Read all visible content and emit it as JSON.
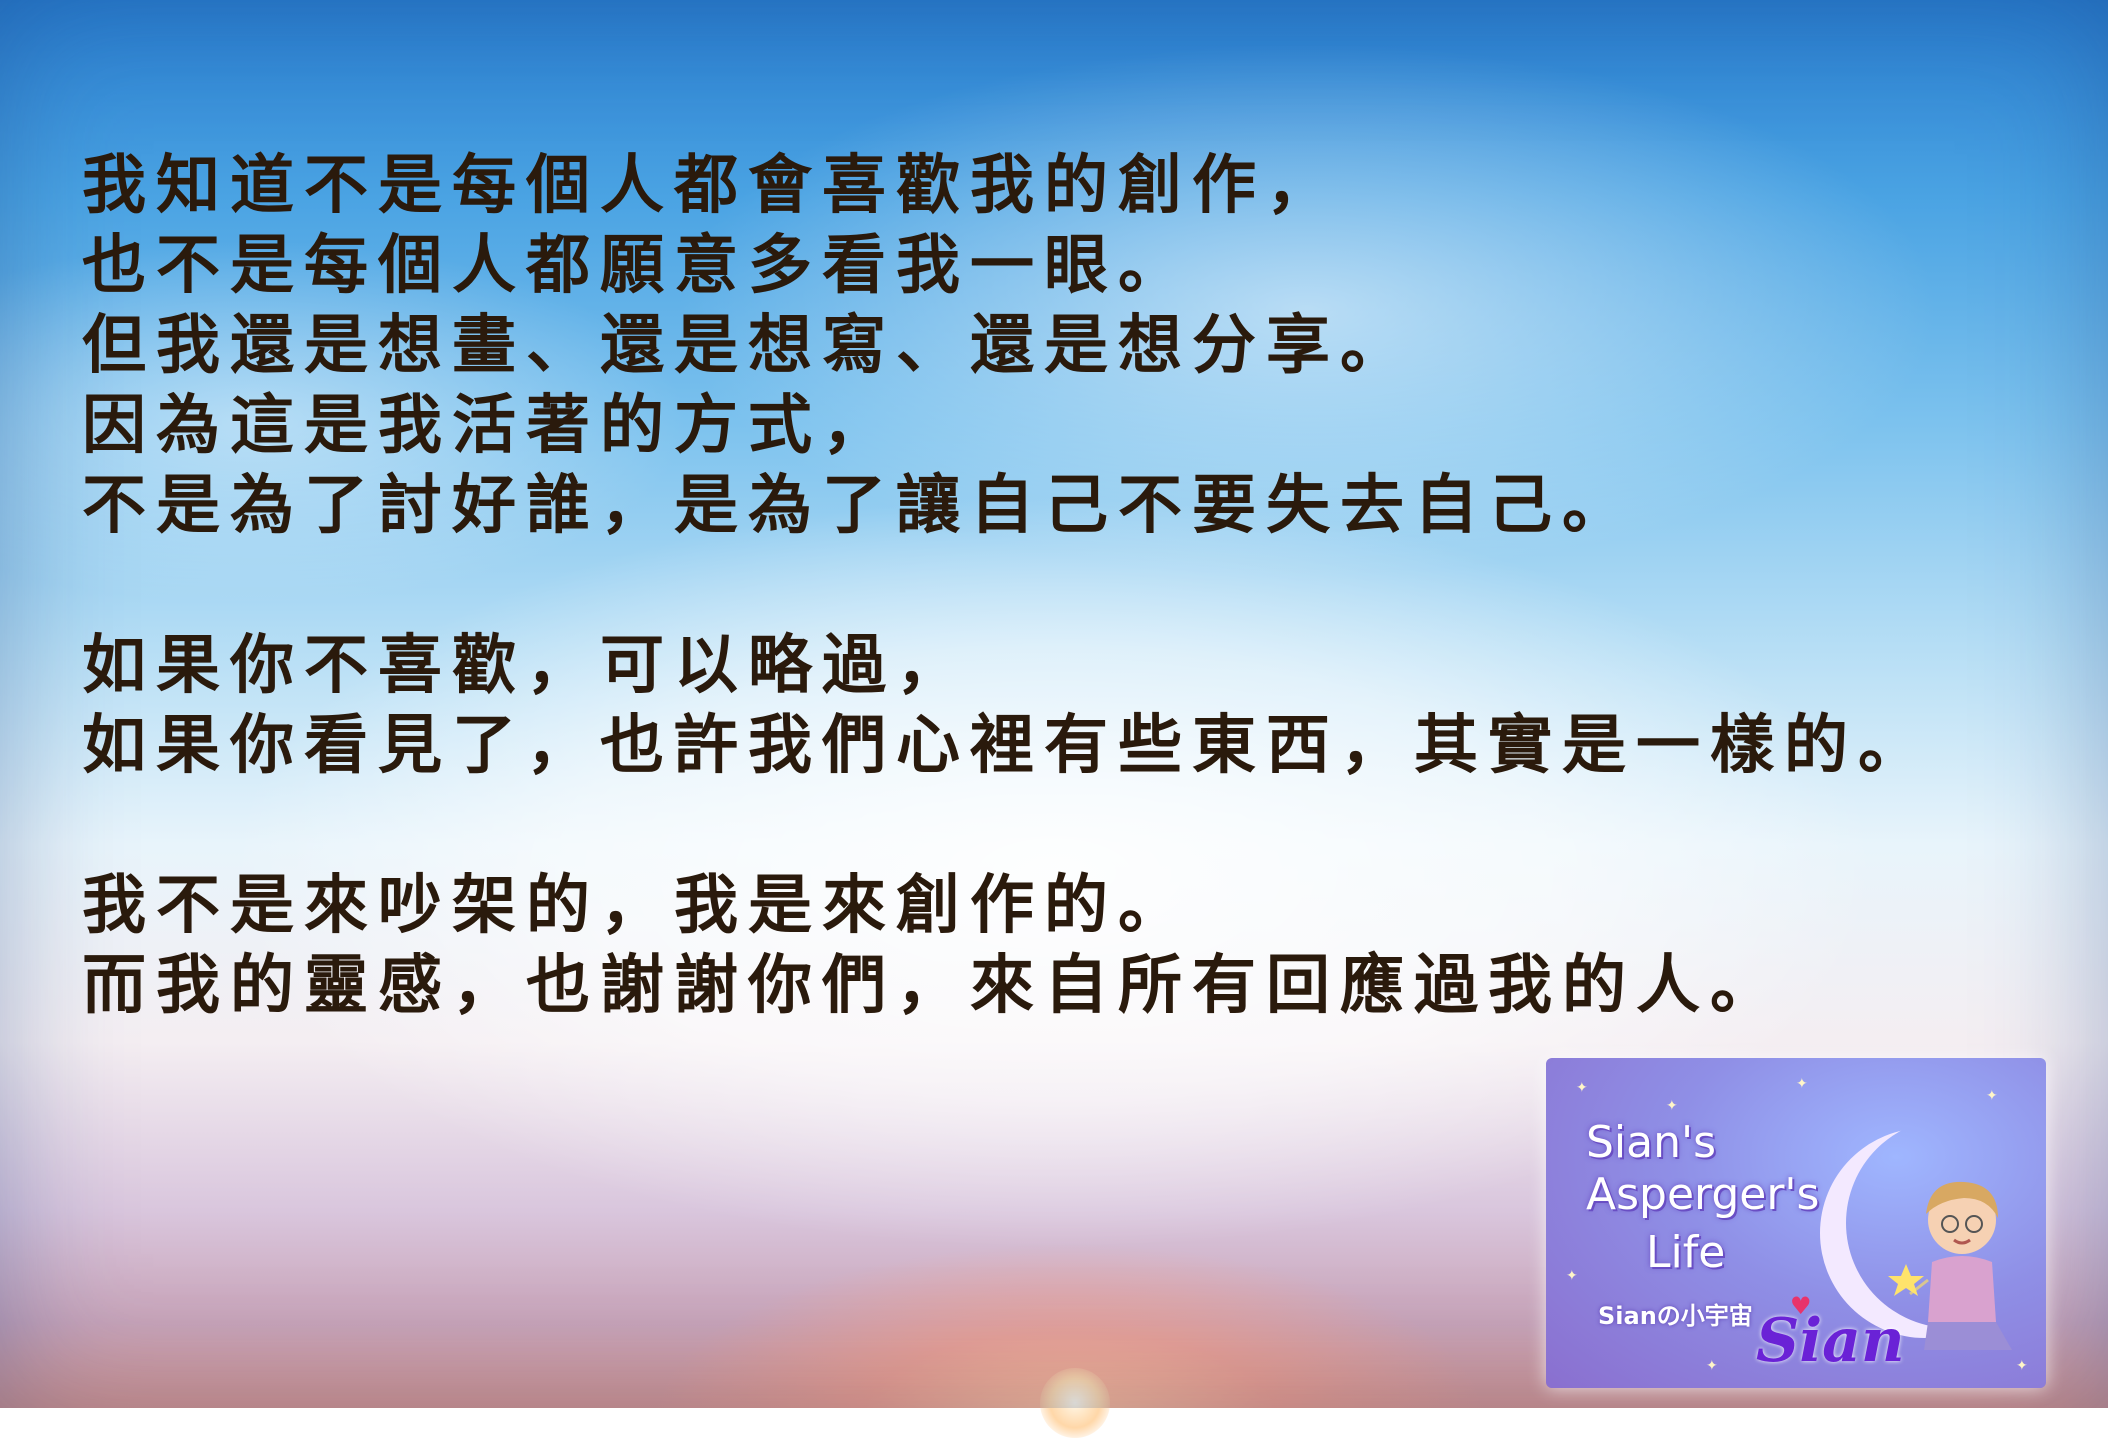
{
  "poem": {
    "stanza1": [
      "我知道不是每個人都會喜歡我的創作，",
      "也不是每個人都願意多看我一眼。",
      "但我還是想畫、還是想寫、還是想分享。",
      "因為這是我活著的方式，",
      "不是為了討好誰，是為了讓自己不要失去自己。"
    ],
    "stanza2": [
      "如果你不喜歡，可以略過，",
      "如果你看見了，也許我們心裡有些東西，其實是一樣的。"
    ],
    "stanza3": [
      "我不是來吵架的，我是來創作的。",
      "而我的靈感，也謝謝你們，來自所有回應過我的人。"
    ]
  },
  "logo": {
    "title_lines": [
      "Sian's",
      "Asperger's",
      "Life"
    ],
    "subtitle": "Sianの小宇宙",
    "signature": "Sian",
    "heart_icon": "heart-icon",
    "avatar_icon": "avatar-illustration"
  },
  "colors": {
    "text": "#2a1a0c",
    "logo_purple": "#8a6fcf",
    "signature": "#6a22d6"
  }
}
